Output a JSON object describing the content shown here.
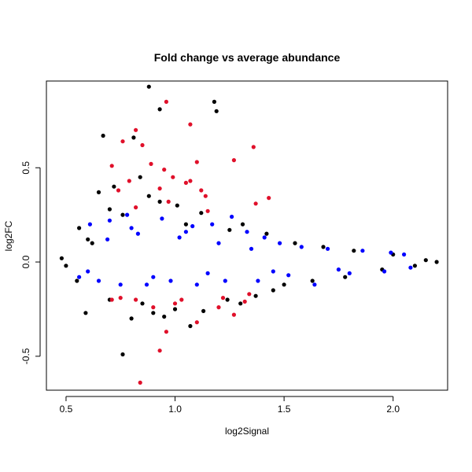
{
  "chart_data": {
    "type": "scatter",
    "title": "Fold change vs average abundance",
    "xlabel": "log2Signal",
    "ylabel": "log2FC",
    "xlim": [
      0.41,
      2.25
    ],
    "ylim": [
      -0.68,
      0.96
    ],
    "xticks": [
      0.5,
      1.0,
      1.5,
      2.0
    ],
    "xtick_labels": [
      "0.5",
      "1.0",
      "1.5",
      "2.0"
    ],
    "yticks": [
      -0.5,
      0.0,
      0.5
    ],
    "ytick_labels": [
      "-0.5",
      "0.0",
      "0.5"
    ],
    "grid": false,
    "legend": "none",
    "colors": {
      "black": "#000000",
      "blue": "#0000ff",
      "red": "#e0102a"
    },
    "series": [
      {
        "color": "black",
        "points": [
          [
            0.88,
            0.93
          ],
          [
            0.93,
            0.81
          ],
          [
            1.18,
            0.85
          ],
          [
            1.19,
            0.8
          ],
          [
            0.67,
            0.67
          ],
          [
            0.81,
            0.66
          ],
          [
            0.84,
            0.45
          ],
          [
            0.72,
            0.4
          ],
          [
            0.65,
            0.37
          ],
          [
            0.93,
            0.32
          ],
          [
            1.01,
            0.3
          ],
          [
            0.56,
            0.18
          ],
          [
            0.6,
            0.12
          ],
          [
            0.76,
            0.25
          ],
          [
            1.12,
            0.26
          ],
          [
            1.31,
            0.2
          ],
          [
            1.42,
            0.15
          ],
          [
            1.55,
            0.1
          ],
          [
            1.68,
            0.08
          ],
          [
            1.82,
            0.06
          ],
          [
            2.0,
            0.04
          ],
          [
            2.15,
            0.01
          ],
          [
            2.2,
            0.0
          ],
          [
            0.5,
            -0.02
          ],
          [
            0.48,
            0.02
          ],
          [
            0.59,
            -0.27
          ],
          [
            0.76,
            -0.49
          ],
          [
            0.85,
            -0.22
          ],
          [
            0.9,
            -0.27
          ],
          [
            1.07,
            -0.34
          ],
          [
            1.13,
            -0.26
          ],
          [
            1.24,
            -0.2
          ],
          [
            1.37,
            -0.18
          ],
          [
            1.5,
            -0.12
          ],
          [
            1.63,
            -0.1
          ],
          [
            1.78,
            -0.08
          ],
          [
            1.95,
            -0.04
          ],
          [
            2.1,
            -0.02
          ],
          [
            0.8,
            -0.3
          ],
          [
            0.95,
            -0.29
          ],
          [
            1.0,
            -0.25
          ],
          [
            1.3,
            -0.22
          ],
          [
            0.7,
            0.28
          ],
          [
            0.88,
            0.35
          ],
          [
            1.05,
            0.2
          ],
          [
            1.25,
            0.17
          ],
          [
            1.45,
            -0.15
          ],
          [
            0.62,
            0.1
          ],
          [
            0.55,
            -0.1
          ],
          [
            0.7,
            -0.2
          ]
        ]
      },
      {
        "color": "blue",
        "points": [
          [
            0.61,
            0.2
          ],
          [
            0.7,
            0.22
          ],
          [
            0.78,
            0.25
          ],
          [
            0.94,
            0.23
          ],
          [
            1.08,
            0.19
          ],
          [
            1.17,
            0.2
          ],
          [
            1.26,
            0.24
          ],
          [
            1.33,
            0.16
          ],
          [
            1.41,
            0.13
          ],
          [
            1.48,
            0.1
          ],
          [
            1.58,
            0.08
          ],
          [
            1.7,
            0.07
          ],
          [
            1.86,
            0.06
          ],
          [
            1.99,
            0.05
          ],
          [
            2.05,
            0.04
          ],
          [
            0.56,
            -0.08
          ],
          [
            0.65,
            -0.1
          ],
          [
            0.75,
            -0.12
          ],
          [
            0.87,
            -0.12
          ],
          [
            0.98,
            -0.1
          ],
          [
            1.1,
            -0.12
          ],
          [
            1.23,
            -0.1
          ],
          [
            1.38,
            -0.1
          ],
          [
            1.52,
            -0.07
          ],
          [
            1.64,
            -0.12
          ],
          [
            1.8,
            -0.06
          ],
          [
            1.96,
            -0.05
          ],
          [
            2.08,
            -0.03
          ],
          [
            0.69,
            0.12
          ],
          [
            0.83,
            0.15
          ],
          [
            1.02,
            0.13
          ],
          [
            1.2,
            0.1
          ],
          [
            1.35,
            0.07
          ],
          [
            0.6,
            -0.05
          ],
          [
            0.9,
            -0.08
          ],
          [
            1.15,
            -0.06
          ],
          [
            1.45,
            -0.05
          ],
          [
            1.75,
            -0.04
          ],
          [
            1.05,
            0.16
          ],
          [
            0.8,
            0.18
          ]
        ]
      },
      {
        "color": "red",
        "points": [
          [
            0.96,
            0.85
          ],
          [
            1.07,
            0.73
          ],
          [
            0.82,
            0.7
          ],
          [
            0.76,
            0.64
          ],
          [
            0.85,
            0.62
          ],
          [
            1.36,
            0.61
          ],
          [
            1.27,
            0.54
          ],
          [
            1.1,
            0.53
          ],
          [
            0.71,
            0.51
          ],
          [
            0.89,
            0.52
          ],
          [
            0.95,
            0.49
          ],
          [
            0.99,
            0.45
          ],
          [
            1.05,
            0.42
          ],
          [
            1.07,
            0.43
          ],
          [
            0.79,
            0.43
          ],
          [
            0.74,
            0.38
          ],
          [
            0.93,
            0.39
          ],
          [
            1.12,
            0.38
          ],
          [
            1.14,
            0.35
          ],
          [
            1.43,
            0.34
          ],
          [
            1.37,
            0.31
          ],
          [
            0.97,
            0.32
          ],
          [
            0.82,
            0.29
          ],
          [
            1.15,
            0.27
          ],
          [
            0.84,
            -0.64
          ],
          [
            0.93,
            -0.47
          ],
          [
            0.96,
            -0.37
          ],
          [
            1.1,
            -0.32
          ],
          [
            1.27,
            -0.28
          ],
          [
            1.2,
            -0.24
          ],
          [
            1.32,
            -0.21
          ],
          [
            1.34,
            -0.17
          ],
          [
            1.22,
            -0.19
          ],
          [
            1.03,
            -0.2
          ],
          [
            0.75,
            -0.19
          ],
          [
            0.71,
            -0.2
          ],
          [
            0.9,
            -0.24
          ],
          [
            1.0,
            -0.22
          ],
          [
            0.82,
            -0.2
          ]
        ]
      }
    ]
  }
}
